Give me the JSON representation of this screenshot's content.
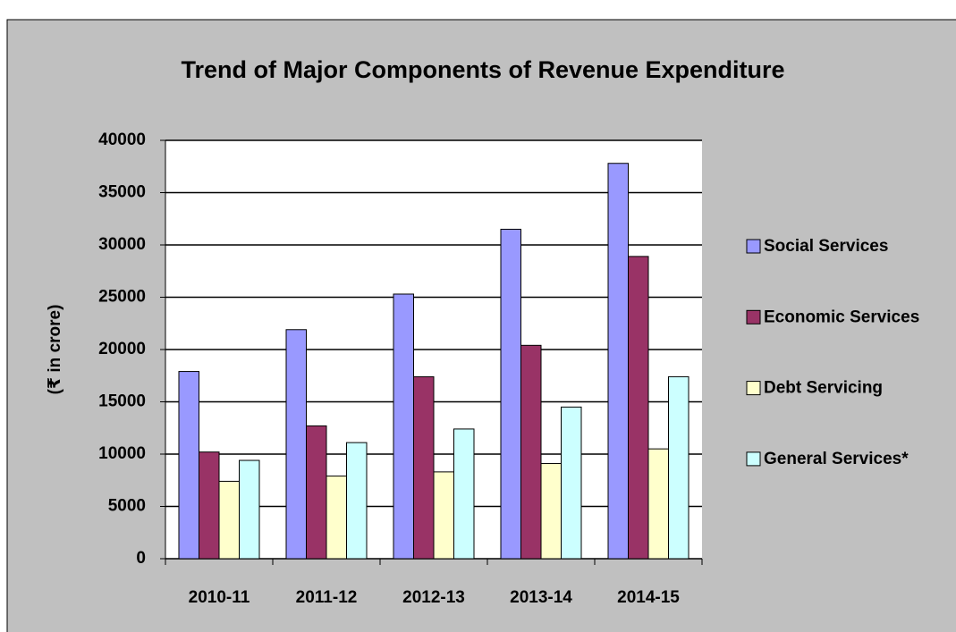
{
  "chart_data": {
    "type": "bar",
    "title": "Trend of Major Components of Revenue Expenditure",
    "y_label": "(₹ in crore)",
    "categories": [
      "2010-11",
      "2011-12",
      "2012-13",
      "2013-14",
      "2014-15"
    ],
    "series": [
      {
        "name": "Social Services",
        "color": "#9999ff",
        "values": [
          17900,
          21900,
          25300,
          31500,
          37800
        ]
      },
      {
        "name": "Economic Services",
        "color": "#993366",
        "values": [
          10200,
          12700,
          17400,
          20400,
          28900
        ]
      },
      {
        "name": "Debt Servicing",
        "color": "#ffffcc",
        "values": [
          7400,
          7900,
          8300,
          9100,
          10500
        ]
      },
      {
        "name": "General Services*",
        "color": "#ccffff",
        "values": [
          9400,
          11100,
          12400,
          14500,
          17400
        ]
      }
    ],
    "ylim": [
      0,
      40000
    ],
    "yticks": [
      0,
      5000,
      10000,
      15000,
      20000,
      25000,
      30000,
      35000,
      40000
    ],
    "grid": true,
    "legend": "right"
  }
}
